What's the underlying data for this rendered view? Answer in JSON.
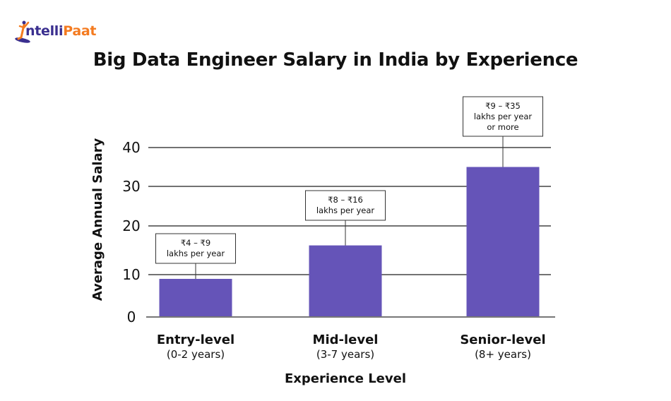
{
  "brand": {
    "logo_text_part1": "ntelli",
    "logo_text_part2": "Paat",
    "logo_full": "IntelliPaat",
    "colors": {
      "primary": "#3a2f8f",
      "accent": "#f47b20"
    }
  },
  "chart_data": {
    "type": "bar",
    "title": "Big Data Engineer Salary in India by Experience",
    "xlabel": "Experience Level",
    "ylabel": "Average Annual Salary",
    "ylim": [
      0,
      40
    ],
    "yticks": [
      0,
      10,
      20,
      30,
      40
    ],
    "grid": true,
    "categories": [
      "Entry-level",
      "Mid-level",
      "Senior-level"
    ],
    "subcategories": [
      "(0-2 years)",
      "(3-7 years)",
      "(8+ years)"
    ],
    "values": [
      9,
      16,
      35
    ],
    "annotations": [
      [
        "₹4 – ₹9",
        "lakhs per year"
      ],
      [
        "₹8 – ₹16",
        "lakhs per year"
      ],
      [
        "₹9 – ₹35",
        "lakhs per year",
        "or more"
      ]
    ],
    "colors": {
      "bar": "#6554b8",
      "grid": "#444444",
      "axis": "#777777"
    }
  }
}
